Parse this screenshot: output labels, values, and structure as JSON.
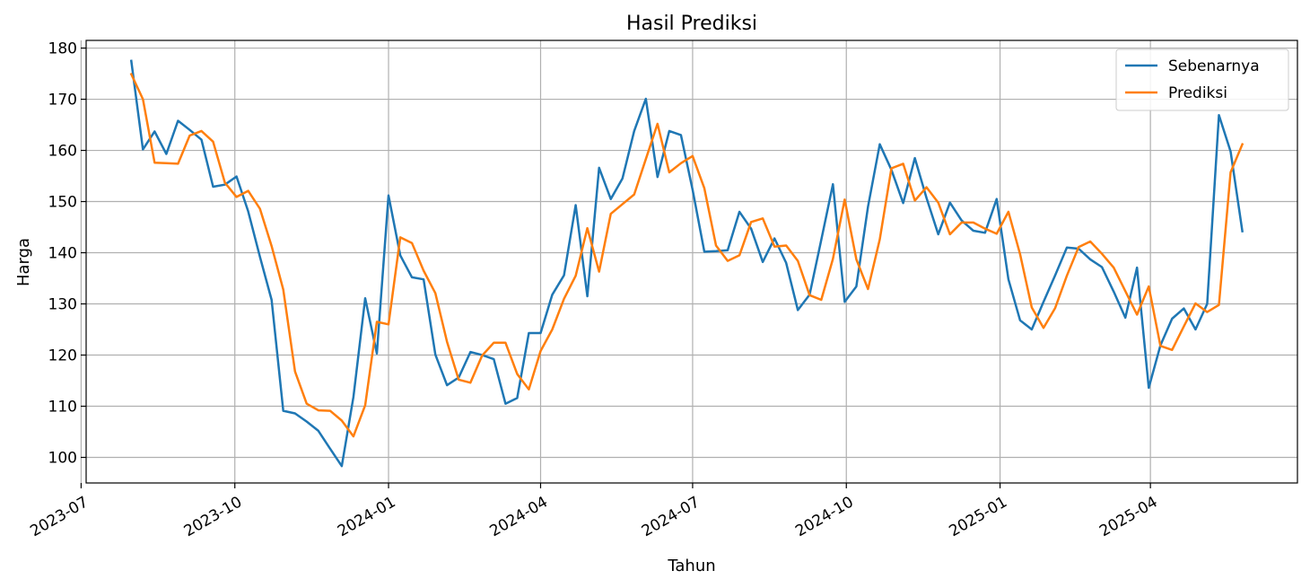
{
  "chart_data": {
    "type": "line",
    "title": "Hasil Prediksi",
    "xlabel": "Tahun",
    "ylabel": "Harga",
    "ylim": [
      95,
      181.5
    ],
    "xlim": [
      "2023-07-04",
      "2025-06-28"
    ],
    "grid": true,
    "legend_position": "top-right",
    "x_ticks": [
      "2023-07",
      "2023-10",
      "2024-01",
      "2024-04",
      "2024-07",
      "2024-10",
      "2025-01",
      "2025-04"
    ],
    "y_ticks": [
      100,
      110,
      120,
      130,
      140,
      150,
      160,
      170,
      180
    ],
    "x": [
      "2023-07-31",
      "2023-08-07",
      "2023-08-14",
      "2023-08-21",
      "2023-08-28",
      "2023-09-04",
      "2023-09-11",
      "2023-09-18",
      "2023-09-25",
      "2023-10-02",
      "2023-10-09",
      "2023-10-16",
      "2023-10-23",
      "2023-10-30",
      "2023-11-06",
      "2023-11-13",
      "2023-11-20",
      "2023-11-27",
      "2023-12-04",
      "2023-12-11",
      "2023-12-18",
      "2023-12-25",
      "2024-01-01",
      "2024-01-08",
      "2024-01-15",
      "2024-01-22",
      "2024-01-29",
      "2024-02-05",
      "2024-02-12",
      "2024-02-19",
      "2024-02-26",
      "2024-03-04",
      "2024-03-11",
      "2024-03-18",
      "2024-03-25",
      "2024-04-01",
      "2024-04-08",
      "2024-04-15",
      "2024-04-22",
      "2024-04-29",
      "2024-05-06",
      "2024-05-13",
      "2024-05-20",
      "2024-05-27",
      "2024-06-03",
      "2024-06-10",
      "2024-06-17",
      "2024-06-24",
      "2024-07-01",
      "2024-07-08",
      "2024-07-15",
      "2024-07-22",
      "2024-07-29",
      "2024-08-05",
      "2024-08-12",
      "2024-08-19",
      "2024-08-26",
      "2024-09-02",
      "2024-09-09",
      "2024-09-16",
      "2024-09-23",
      "2024-09-30",
      "2024-10-07",
      "2024-10-14",
      "2024-10-21",
      "2024-10-28",
      "2024-11-04",
      "2024-11-11",
      "2024-11-18",
      "2024-11-25",
      "2024-12-02",
      "2024-12-09",
      "2024-12-16",
      "2024-12-23",
      "2024-12-30",
      "2025-01-06",
      "2025-01-13",
      "2025-01-20",
      "2025-01-27",
      "2025-02-03",
      "2025-02-10",
      "2025-02-17",
      "2025-02-24",
      "2025-03-03",
      "2025-03-10",
      "2025-03-17",
      "2025-03-24",
      "2025-03-31",
      "2025-04-07",
      "2025-04-14",
      "2025-04-21",
      "2025-04-28",
      "2025-05-05",
      "2025-05-12",
      "2025-05-19",
      "2025-05-26"
    ],
    "series": [
      {
        "name": "Sebenarnya",
        "color": "#1f77b4",
        "values": [
          177.5,
          160.2,
          163.7,
          159.3,
          165.8,
          164.0,
          162.1,
          152.9,
          153.3,
          154.9,
          148.1,
          139.2,
          130.8,
          109.1,
          108.6,
          107.0,
          105.2,
          101.7,
          98.3,
          111.8,
          131.1,
          120.3,
          151.2,
          139.5,
          135.2,
          134.8,
          120.1,
          114.1,
          115.6,
          120.6,
          120.0,
          119.2,
          110.5,
          111.6,
          124.3,
          124.3,
          131.8,
          135.6,
          149.3,
          131.5,
          156.6,
          150.5,
          154.5,
          163.8,
          170.1,
          154.8,
          163.8,
          163.0,
          152.3,
          140.2,
          140.3,
          140.5,
          148.0,
          144.7,
          138.2,
          142.8,
          138.0,
          128.8,
          131.8,
          142.5,
          153.4,
          130.4,
          133.4,
          149.0,
          161.2,
          156.2,
          149.7,
          158.5,
          150.7,
          143.6,
          149.8,
          146.3,
          144.3,
          143.9,
          150.5,
          134.8,
          126.8,
          125.0,
          130.4,
          135.6,
          141.0,
          140.8,
          138.7,
          137.2,
          132.4,
          127.3,
          137.1,
          113.6,
          121.9,
          127.1,
          129.1,
          125.0,
          130.0,
          166.9,
          159.8,
          144.2
        ]
      },
      {
        "name": "Prediksi",
        "color": "#ff7f0e",
        "values": [
          174.9,
          170.0,
          157.6,
          157.5,
          157.4,
          162.9,
          163.8,
          161.7,
          153.7,
          150.9,
          152.1,
          148.6,
          141.3,
          132.8,
          116.8,
          110.5,
          109.2,
          109.1,
          107.2,
          104.1,
          110.2,
          126.5,
          126.0,
          143.0,
          141.9,
          136.5,
          132.1,
          122.6,
          115.2,
          114.6,
          119.9,
          122.4,
          122.4,
          116.3,
          113.3,
          120.8,
          125.0,
          131.0,
          135.5,
          144.8,
          136.3,
          147.6,
          149.5,
          151.4,
          158.3,
          165.2,
          155.7,
          157.5,
          158.9,
          152.6,
          141.4,
          138.4,
          139.5,
          146.0,
          146.7,
          141.2,
          141.4,
          138.4,
          131.7,
          130.8,
          138.8,
          150.4,
          138.7,
          132.9,
          142.6,
          156.5,
          157.4,
          150.2,
          152.8,
          149.8,
          143.6,
          145.9,
          145.9,
          144.7,
          143.7,
          148.0,
          139.7,
          129.3,
          125.3,
          129.2,
          135.5,
          141.1,
          142.2,
          139.8,
          137.1,
          132.5,
          127.9,
          133.4,
          121.8,
          121.0,
          125.6,
          130.1,
          128.4,
          129.8,
          155.7,
          161.2
        ]
      }
    ]
  }
}
